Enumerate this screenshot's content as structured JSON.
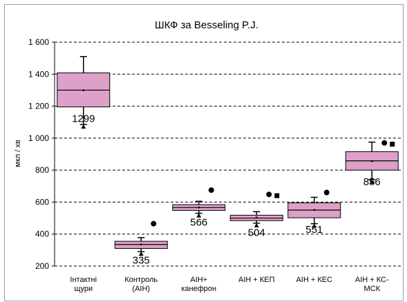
{
  "chart_data": {
    "type": "box",
    "title": "ШКФ за Besseling P.J.",
    "ylabel": "мкл / хв",
    "xlabel": "",
    "ylim": [
      200,
      1600
    ],
    "yticks": [
      200,
      400,
      600,
      800,
      1000,
      1200,
      1400,
      1600
    ],
    "ytick_labels": [
      "200",
      "400",
      "600",
      "800",
      "1 000",
      "1 200",
      "1 400",
      "1 600"
    ],
    "grid": "horizontal dashed",
    "colors": {
      "box_fill": "#DDA0C8",
      "box_stroke": "#000000",
      "grid": "#000000"
    },
    "categories": [
      [
        "Інтактні",
        "щури"
      ],
      [
        "Контроль",
        "(AIH)"
      ],
      [
        "AIH+",
        "канефрон"
      ],
      [
        "AIH + КЕП"
      ],
      [
        "AIH + КЕС"
      ],
      [
        "AIH + КС-",
        "МСК"
      ]
    ],
    "boxes": [
      {
        "whisker_low": 1085,
        "q1": 1195,
        "median": 1300,
        "mean": 1299,
        "q3": 1408,
        "whisker_high": 1510,
        "label": "1299",
        "outliers_circle": [],
        "outliers_square": []
      },
      {
        "whisker_low": 290,
        "q1": 310,
        "median": 335,
        "mean": 335,
        "q3": 355,
        "whisker_high": 378,
        "label": "335",
        "outliers_circle": [
          465
        ],
        "outliers_square": []
      },
      {
        "whisker_low": 530,
        "q1": 548,
        "median": 566,
        "mean": 566,
        "q3": 584,
        "whisker_high": 605,
        "label": "566",
        "outliers_circle": [
          675
        ],
        "outliers_square": []
      },
      {
        "whisker_low": 468,
        "q1": 484,
        "median": 500,
        "mean": 504,
        "q3": 518,
        "whisker_high": 540,
        "label": "504",
        "outliers_circle": [
          648
        ],
        "outliers_square": [
          640
        ]
      },
      {
        "whisker_low": 465,
        "q1": 502,
        "median": 550,
        "mean": 551,
        "q3": 595,
        "whisker_high": 630,
        "label": "551",
        "outliers_circle": [
          660
        ],
        "outliers_square": []
      },
      {
        "whisker_low": 740,
        "q1": 800,
        "median": 858,
        "mean": 856,
        "q3": 915,
        "whisker_high": 975,
        "label": "856",
        "outliers_circle": [
          970
        ],
        "outliers_square": [
          962
        ]
      }
    ]
  }
}
